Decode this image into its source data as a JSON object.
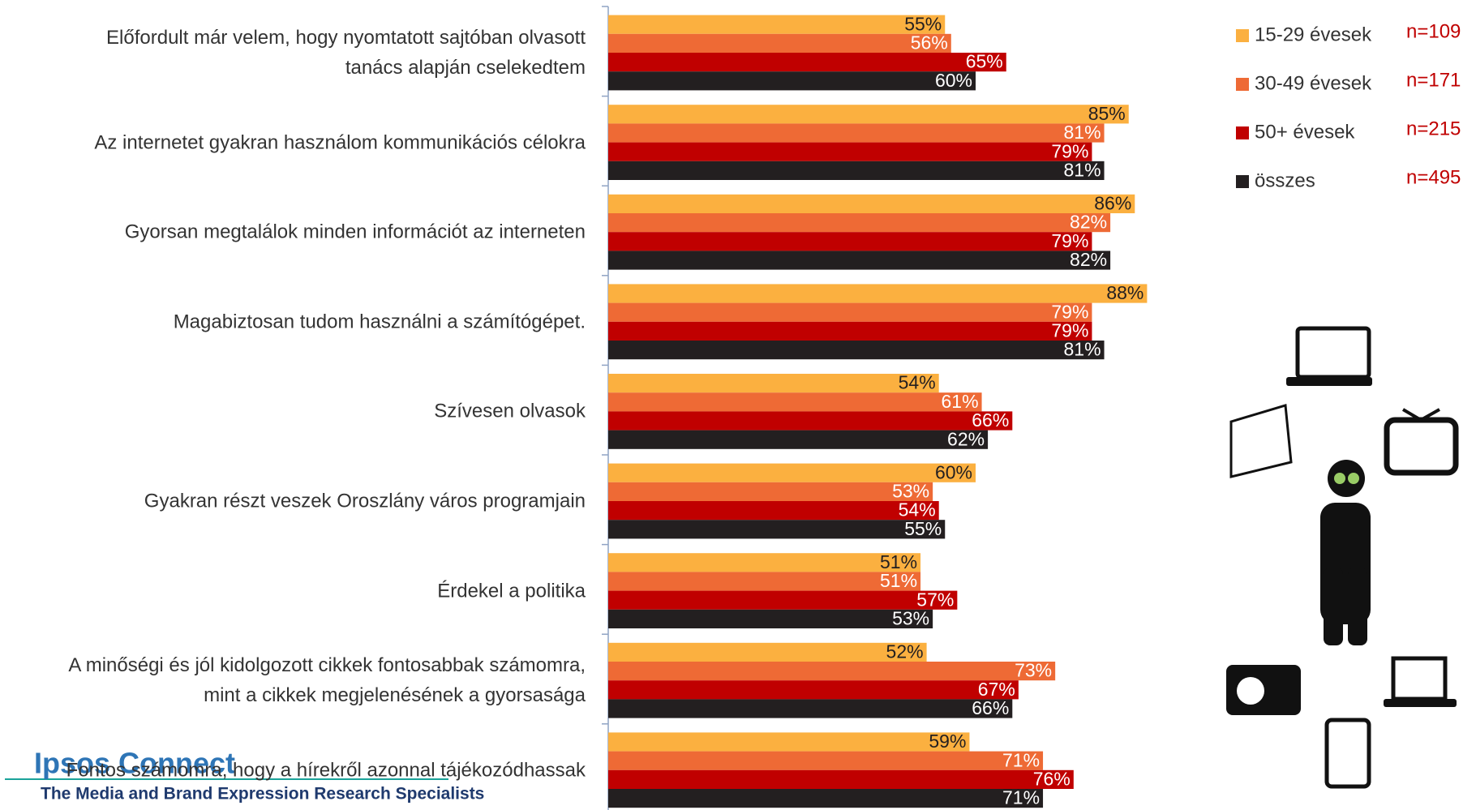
{
  "chart_data": {
    "type": "hbar",
    "categories": [
      "Előfordult már velem, hogy nyomtatott sajtóban olvasott\ntanács alapján cselekedtem",
      "Az internetet gyakran használom kommunikációs célokra",
      "Gyorsan megtalálok minden információt az interneten",
      "Magabiztosan tudom használni a számítógépet.",
      "Szívesen olvasok",
      "Gyakran részt veszek Oroszlány város programjain",
      "Érdekel a politika",
      "A minőségi és jól kidolgozott cikkek fontosabbak számomra,\nmint a cikkek megjelenésének a gyorsasága",
      "Fontos számomra, hogy a hírekről azonnal tájékozódhassak"
    ],
    "xlim": [
      0,
      100
    ],
    "series": [
      {
        "name": "15-29 évesek",
        "n": "n=109",
        "color": "#fbb040",
        "label_color": "#231f20",
        "values": [
          55,
          85,
          86,
          88,
          54,
          60,
          51,
          52,
          59
        ],
        "value_labels": [
          "55%",
          "85%",
          "86%",
          "88%",
          "54%",
          "60%",
          "51%",
          "52%",
          "59%"
        ]
      },
      {
        "name": "30-49 évesek",
        "n": "n=171",
        "color": "#ee6a35",
        "label_color": "#ffffff",
        "values": [
          56,
          81,
          82,
          79,
          61,
          53,
          51,
          73,
          71
        ],
        "value_labels": [
          "56%",
          "81%",
          "82%",
          "79%",
          "61%",
          "53%",
          "51%",
          "73%",
          "71%"
        ]
      },
      {
        "name": "50+ évesek",
        "n": "n=215",
        "color": "#c00000",
        "label_color": "#ffffff",
        "values": [
          65,
          79,
          79,
          79,
          66,
          54,
          57,
          67,
          76
        ],
        "value_labels": [
          "65%",
          "79%",
          "79%",
          "79%",
          "66%",
          "54%",
          "57%",
          "67%",
          "76%"
        ]
      },
      {
        "name": "összes",
        "n": "n=495",
        "color": "#231f20",
        "label_color": "#ffffff",
        "values": [
          60,
          81,
          82,
          81,
          62,
          55,
          53,
          66,
          71
        ],
        "value_labels": [
          "60%",
          "81%",
          "82%",
          "81%",
          "62%",
          "55%",
          "53%",
          "66%",
          "71%"
        ]
      }
    ]
  },
  "logo": {
    "title": "Ipsos Connect",
    "subtitle": "The Media and Brand Expression Research Specialists"
  }
}
